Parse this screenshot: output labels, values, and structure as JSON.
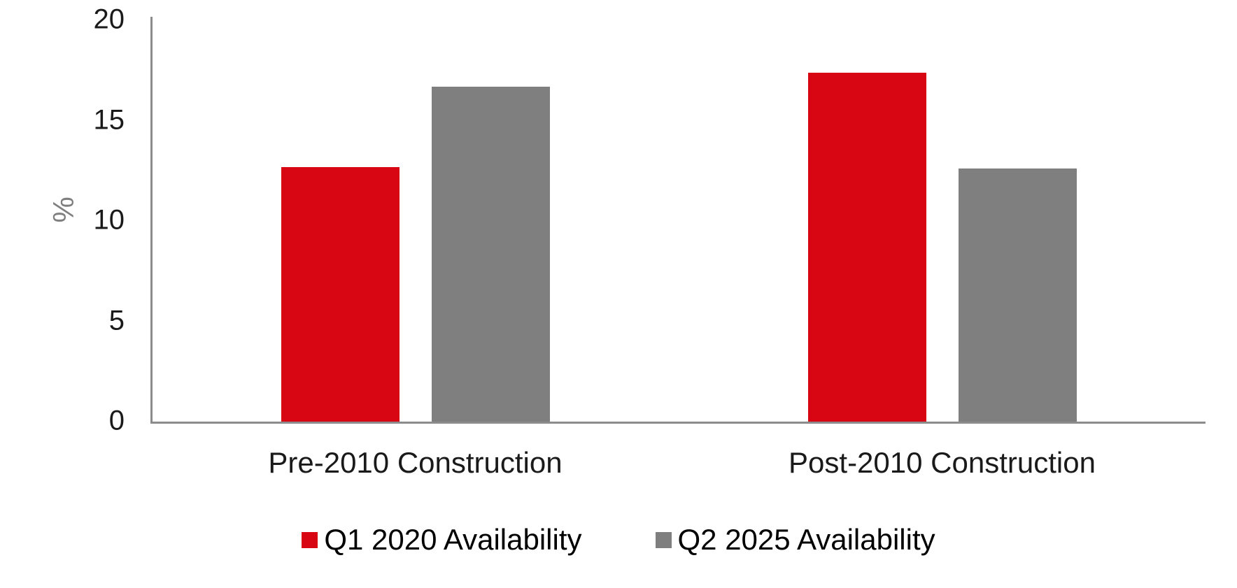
{
  "chart_data": {
    "type": "bar",
    "categories": [
      "Pre-2010 Construction",
      "Post-2010 Construction"
    ],
    "series": [
      {
        "name": "Q1 2020 Availability",
        "color": "#d80613",
        "values": [
          12.7,
          17.4
        ]
      },
      {
        "name": "Q2 2025 Availability",
        "color": "#7f7f7f",
        "values": [
          16.7,
          12.6
        ]
      }
    ],
    "title": "",
    "xlabel": "",
    "ylabel": "%",
    "ylim": [
      0,
      20
    ],
    "yticks": [
      0,
      5,
      10,
      15,
      20
    ],
    "grid": false,
    "legend_position": "bottom"
  },
  "colors": {
    "axis_line": "#8c8c8c",
    "tick_text": "#1a1a1a",
    "y_label_text": "#7f7f7f",
    "category_text": "#1a1a1a",
    "legend_text": "#000000",
    "background": "#ffffff"
  }
}
